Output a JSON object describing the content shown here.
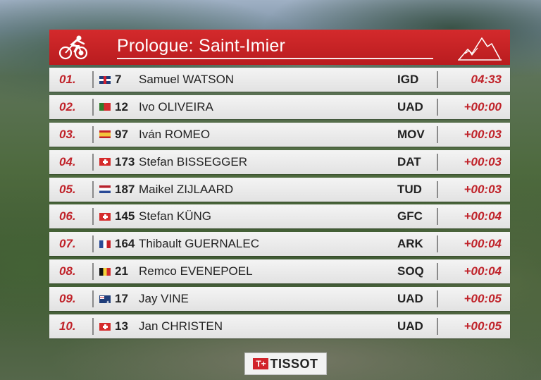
{
  "header": {
    "title": "Prologue: Saint-Imier"
  },
  "icons": {
    "cyclist": "cyclist-icon",
    "mountain": "mountain-icon"
  },
  "colors": {
    "header_red": "#c42326",
    "accent_red": "#c0232a",
    "row_bg": "#eeeeee"
  },
  "results": [
    {
      "pos": "01.",
      "flag": "gb",
      "bib": "7",
      "name": "Samuel WATSON",
      "team": "IGD",
      "time": "04:33"
    },
    {
      "pos": "02.",
      "flag": "pt",
      "bib": "12",
      "name": "Ivo OLIVEIRA",
      "team": "UAD",
      "time": "+00:00"
    },
    {
      "pos": "03.",
      "flag": "es",
      "bib": "97",
      "name": "Iván ROMEO",
      "team": "MOV",
      "time": "+00:03"
    },
    {
      "pos": "04.",
      "flag": "ch",
      "bib": "173",
      "name": "Stefan BISSEGGER",
      "team": "DAT",
      "time": "+00:03"
    },
    {
      "pos": "05.",
      "flag": "nl",
      "bib": "187",
      "name": "Maikel ZIJLAARD",
      "team": "TUD",
      "time": "+00:03"
    },
    {
      "pos": "06.",
      "flag": "ch",
      "bib": "145",
      "name": "Stefan KÜNG",
      "team": "GFC",
      "time": "+00:04"
    },
    {
      "pos": "07.",
      "flag": "fr",
      "bib": "164",
      "name": "Thibault GUERNALEC",
      "team": "ARK",
      "time": "+00:04"
    },
    {
      "pos": "08.",
      "flag": "be",
      "bib": "21",
      "name": "Remco EVENEPOEL",
      "team": "SOQ",
      "time": "+00:04"
    },
    {
      "pos": "09.",
      "flag": "au",
      "bib": "17",
      "name": "Jay VINE",
      "team": "UAD",
      "time": "+00:05"
    },
    {
      "pos": "10.",
      "flag": "ch",
      "bib": "13",
      "name": "Jan CHRISTEN",
      "team": "UAD",
      "time": "+00:05"
    }
  ],
  "sponsor": {
    "mark": "T+",
    "brand": "TISSOT"
  }
}
